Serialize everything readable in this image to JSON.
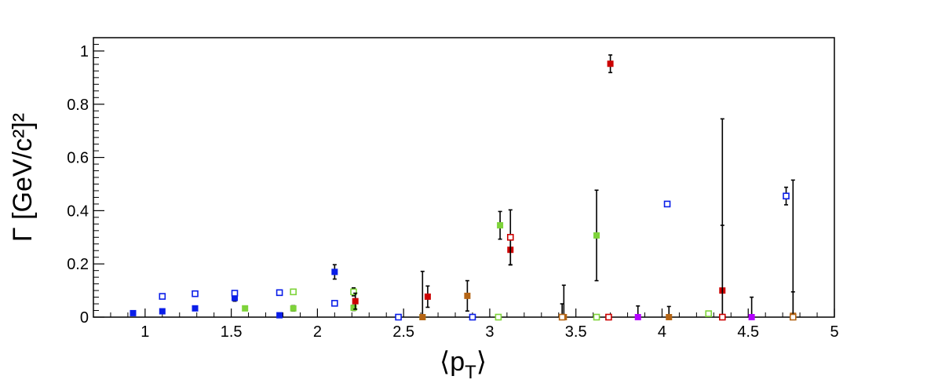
{
  "chart_data": {
    "type": "scatter",
    "xlabel": "⟨p",
    "xlabel_sub": "T",
    "xlabel_close": "⟩",
    "ylabel": "Γ [GeV/c²]²",
    "xlim": [
      0.7,
      5.0
    ],
    "ylim": [
      0.0,
      1.05
    ],
    "x_ticks": [
      1,
      1.5,
      2,
      2.5,
      3,
      3.5,
      4,
      4.5,
      5
    ],
    "x_tick_labels": [
      "1",
      "1.5",
      "2",
      "2.5",
      "3",
      "3.5",
      "4",
      "4.5",
      "5"
    ],
    "y_ticks": [
      0,
      0.2,
      0.4,
      0.6,
      0.8,
      1
    ],
    "y_tick_labels": [
      "0",
      "0.2",
      "0.4",
      "0.6",
      "0.8",
      "1"
    ],
    "grid": false,
    "legend": "none",
    "series": [
      {
        "color": "#0a1ee8",
        "marker": "filled-square",
        "points": [
          {
            "x": 0.93,
            "y": 0.015,
            "err": 0.004
          },
          {
            "x": 1.1,
            "y": 0.022,
            "err": 0.005
          },
          {
            "x": 1.29,
            "y": 0.033,
            "err": 0.006
          },
          {
            "x": 1.52,
            "y": 0.072,
            "err": 0.012
          },
          {
            "x": 1.78,
            "y": 0.007,
            "err": 0.004
          },
          {
            "x": 2.1,
            "y": 0.17,
            "err": 0.027
          }
        ]
      },
      {
        "color": "#0a1ee8",
        "marker": "open-square",
        "points": [
          {
            "x": 1.1,
            "y": 0.078,
            "err": 0.004
          },
          {
            "x": 1.29,
            "y": 0.088,
            "err": 0.004
          },
          {
            "x": 1.52,
            "y": 0.09,
            "err": 0.004
          },
          {
            "x": 1.78,
            "y": 0.092,
            "err": 0.004
          },
          {
            "x": 2.1,
            "y": 0.052,
            "err": 0.004
          },
          {
            "x": 2.47,
            "y": 0.0,
            "err": 0.004
          },
          {
            "x": 2.9,
            "y": 0.0,
            "err": 0.004
          },
          {
            "x": 4.03,
            "y": 0.425,
            "err": 0.008
          },
          {
            "x": 4.72,
            "y": 0.455,
            "err": 0.033
          }
        ]
      },
      {
        "color": "#7ed33a",
        "marker": "filled-square",
        "points": [
          {
            "x": 1.58,
            "y": 0.033,
            "err": 0.005
          },
          {
            "x": 1.86,
            "y": 0.033,
            "err": 0.01
          },
          {
            "x": 2.21,
            "y": 0.035,
            "err": 0.01
          },
          {
            "x": 2.61,
            "y": 0.0,
            "err": 0.004
          },
          {
            "x": 3.06,
            "y": 0.345,
            "err": 0.052
          },
          {
            "x": 3.62,
            "y": 0.307,
            "err": 0.17
          }
        ]
      },
      {
        "color": "#7ed33a",
        "marker": "open-square",
        "points": [
          {
            "x": 1.86,
            "y": 0.095,
            "err": 0.01
          },
          {
            "x": 2.21,
            "y": 0.095,
            "err": 0.015
          },
          {
            "x": 3.05,
            "y": 0.0,
            "err": 0.004
          },
          {
            "x": 3.62,
            "y": 0.0,
            "err": 0.004
          },
          {
            "x": 4.27,
            "y": 0.013,
            "err": 0.006
          }
        ]
      },
      {
        "color": "#cc0000",
        "marker": "filled-square",
        "points": [
          {
            "x": 2.22,
            "y": 0.06,
            "err": 0.03
          },
          {
            "x": 2.64,
            "y": 0.077,
            "err": 0.04
          },
          {
            "x": 3.12,
            "y": 0.253,
            "err": 0.057
          },
          {
            "x": 3.7,
            "y": 0.952,
            "err": 0.033
          },
          {
            "x": 4.35,
            "y": 0.1,
            "err": 0.645
          }
        ]
      },
      {
        "color": "#cc0000",
        "marker": "open-square",
        "points": [
          {
            "x": 3.12,
            "y": 0.3,
            "err": 0.103
          },
          {
            "x": 3.69,
            "y": 0.0,
            "err": 0.004
          },
          {
            "x": 4.35,
            "y": 0.0,
            "err": 0.345
          }
        ]
      },
      {
        "color": "#b46414",
        "marker": "filled-square",
        "points": [
          {
            "x": 2.61,
            "y": 0.0,
            "err": 0.172
          },
          {
            "x": 2.87,
            "y": 0.08,
            "err": 0.057
          },
          {
            "x": 3.43,
            "y": 0.0,
            "err": 0.12
          },
          {
            "x": 4.04,
            "y": 0.0,
            "err": 0.04
          },
          {
            "x": 4.76,
            "y": 0.005,
            "err": 0.51
          }
        ]
      },
      {
        "color": "#b46414",
        "marker": "open-square",
        "points": [
          {
            "x": 3.42,
            "y": 0.0,
            "err": 0.05
          },
          {
            "x": 4.76,
            "y": 0.0,
            "err": 0.095
          }
        ]
      },
      {
        "color": "#b400ff",
        "marker": "filled-square",
        "points": [
          {
            "x": 3.86,
            "y": 0.0,
            "err": 0.042
          },
          {
            "x": 4.52,
            "y": 0.0,
            "err": 0.075
          }
        ]
      }
    ]
  }
}
